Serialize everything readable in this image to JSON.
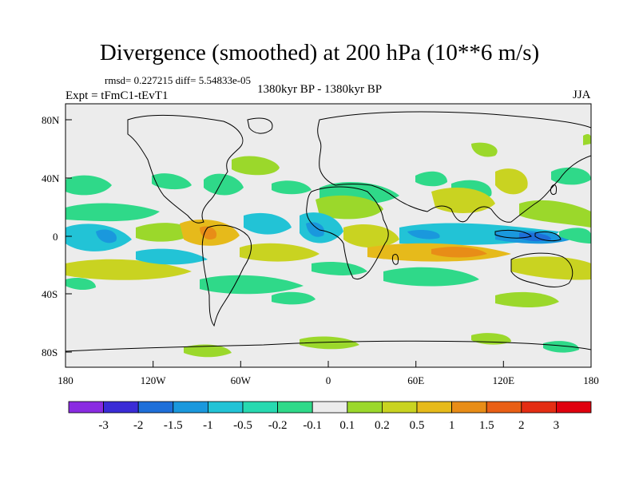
{
  "title": "Divergence (smoothed) at 200 hPa (10**6 m/s)",
  "stats": "rmsd= 0.227215 diff= 5.54833e-05",
  "expt": "Expt = tFmC1-tEvT1",
  "period": "1380kyr BP - 1380kyr BP",
  "season": "JJA",
  "lat_labels": [
    "80N",
    "40N",
    "0",
    "40S",
    "80S"
  ],
  "lon_labels": [
    "180",
    "120W",
    "60W",
    "0",
    "60E",
    "120E",
    "180"
  ],
  "colorbar": {
    "labels": [
      "-3",
      "-2",
      "-1.5",
      "-1",
      "-0.5",
      "-0.2",
      "-0.1",
      "0.1",
      "0.2",
      "0.5",
      "1",
      "1.5",
      "2",
      "3"
    ],
    "colors": [
      "#8a2be2",
      "#3a2bd6",
      "#1e6fd9",
      "#1a98dd",
      "#22c3d6",
      "#27d9b0",
      "#2fd989",
      "#ececec",
      "#9bd82b",
      "#c9d321",
      "#e6ba1b",
      "#e88d17",
      "#e95f15",
      "#e42d13",
      "#e0000e"
    ]
  }
}
